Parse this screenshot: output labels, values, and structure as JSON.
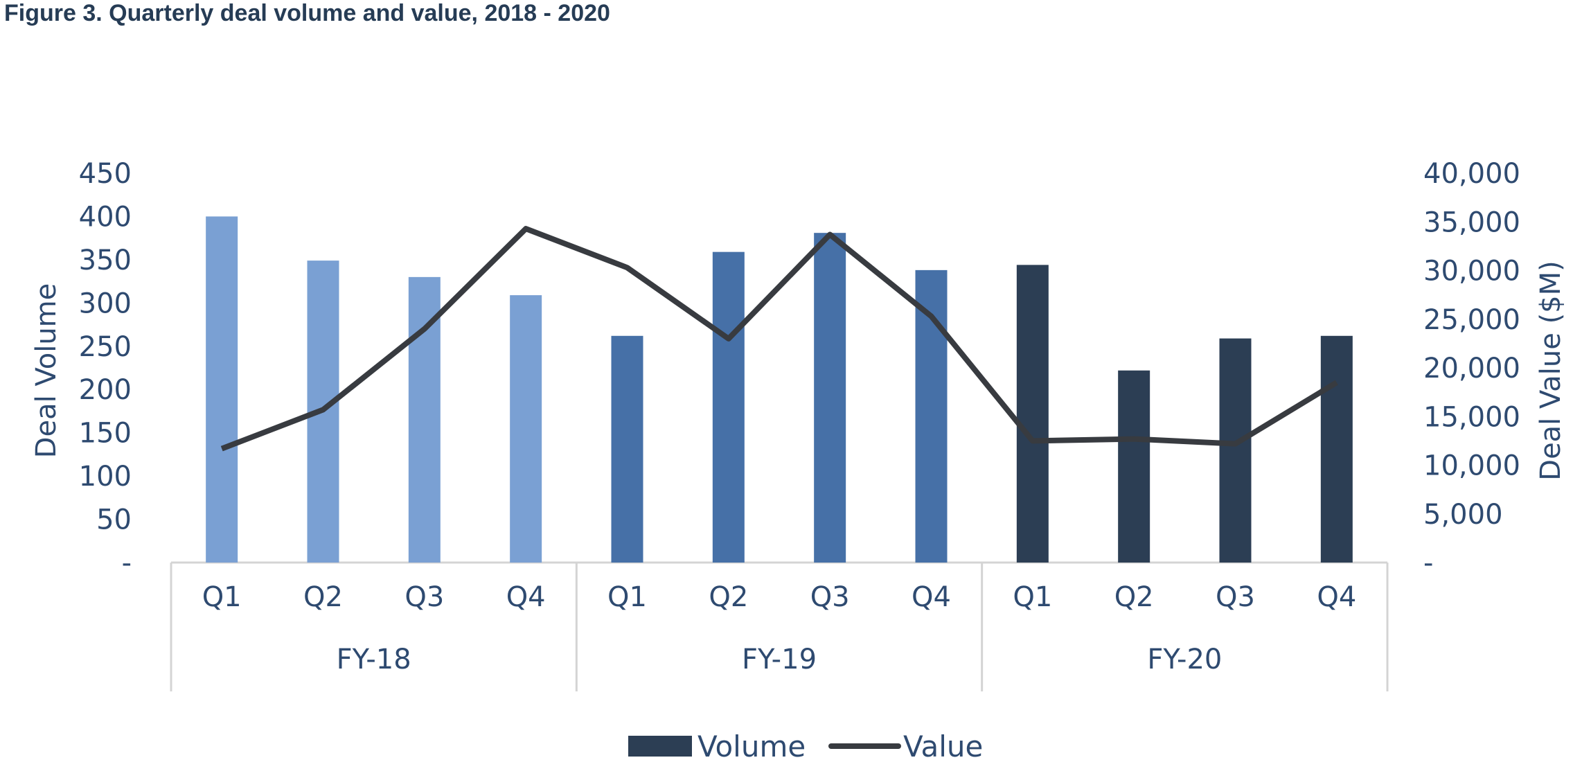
{
  "title": "Figure 3. Quarterly deal volume and value, 2018 - 2020",
  "chart_data": {
    "type": "bar",
    "title": "Figure 3. Quarterly deal volume and value, 2018 - 2020",
    "groups": [
      {
        "label": "FY-18",
        "categories": [
          "Q1",
          "Q2",
          "Q3",
          "Q4"
        ],
        "color": "#7aa0d3"
      },
      {
        "label": "FY-19",
        "categories": [
          "Q1",
          "Q2",
          "Q3",
          "Q4"
        ],
        "color": "#4670a7"
      },
      {
        "label": "FY-20",
        "categories": [
          "Q1",
          "Q2",
          "Q3",
          "Q4"
        ],
        "color": "#2c3e54"
      }
    ],
    "series": [
      {
        "name": "Volume",
        "type": "bar",
        "axis": "left",
        "values": [
          400,
          349,
          330,
          309,
          262,
          359,
          381,
          338,
          344,
          222,
          259,
          262
        ]
      },
      {
        "name": "Value",
        "type": "line",
        "axis": "right",
        "color": "#383b40",
        "values": [
          11700,
          15700,
          24000,
          34300,
          30300,
          23000,
          33700,
          25300,
          12500,
          12700,
          12200,
          18500
        ]
      }
    ],
    "ylabel": "Deal Volume",
    "ylabel_right": "Deal Value ($M)",
    "ylim": [
      0,
      450
    ],
    "ylim_right": [
      0,
      40000
    ],
    "yticks": [
      "-",
      "50",
      "100",
      "150",
      "200",
      "250",
      "300",
      "350",
      "400",
      "450"
    ],
    "yticks_right": [
      "-",
      "5,000",
      "10,000",
      "15,000",
      "20,000",
      "25,000",
      "30,000",
      "35,000",
      "40,000"
    ],
    "legend": {
      "position": "bottom",
      "items": [
        {
          "label": "Volume",
          "color": "#2c3e54",
          "kind": "bar"
        },
        {
          "label": "Value",
          "color": "#383b40",
          "kind": "line"
        }
      ]
    }
  }
}
